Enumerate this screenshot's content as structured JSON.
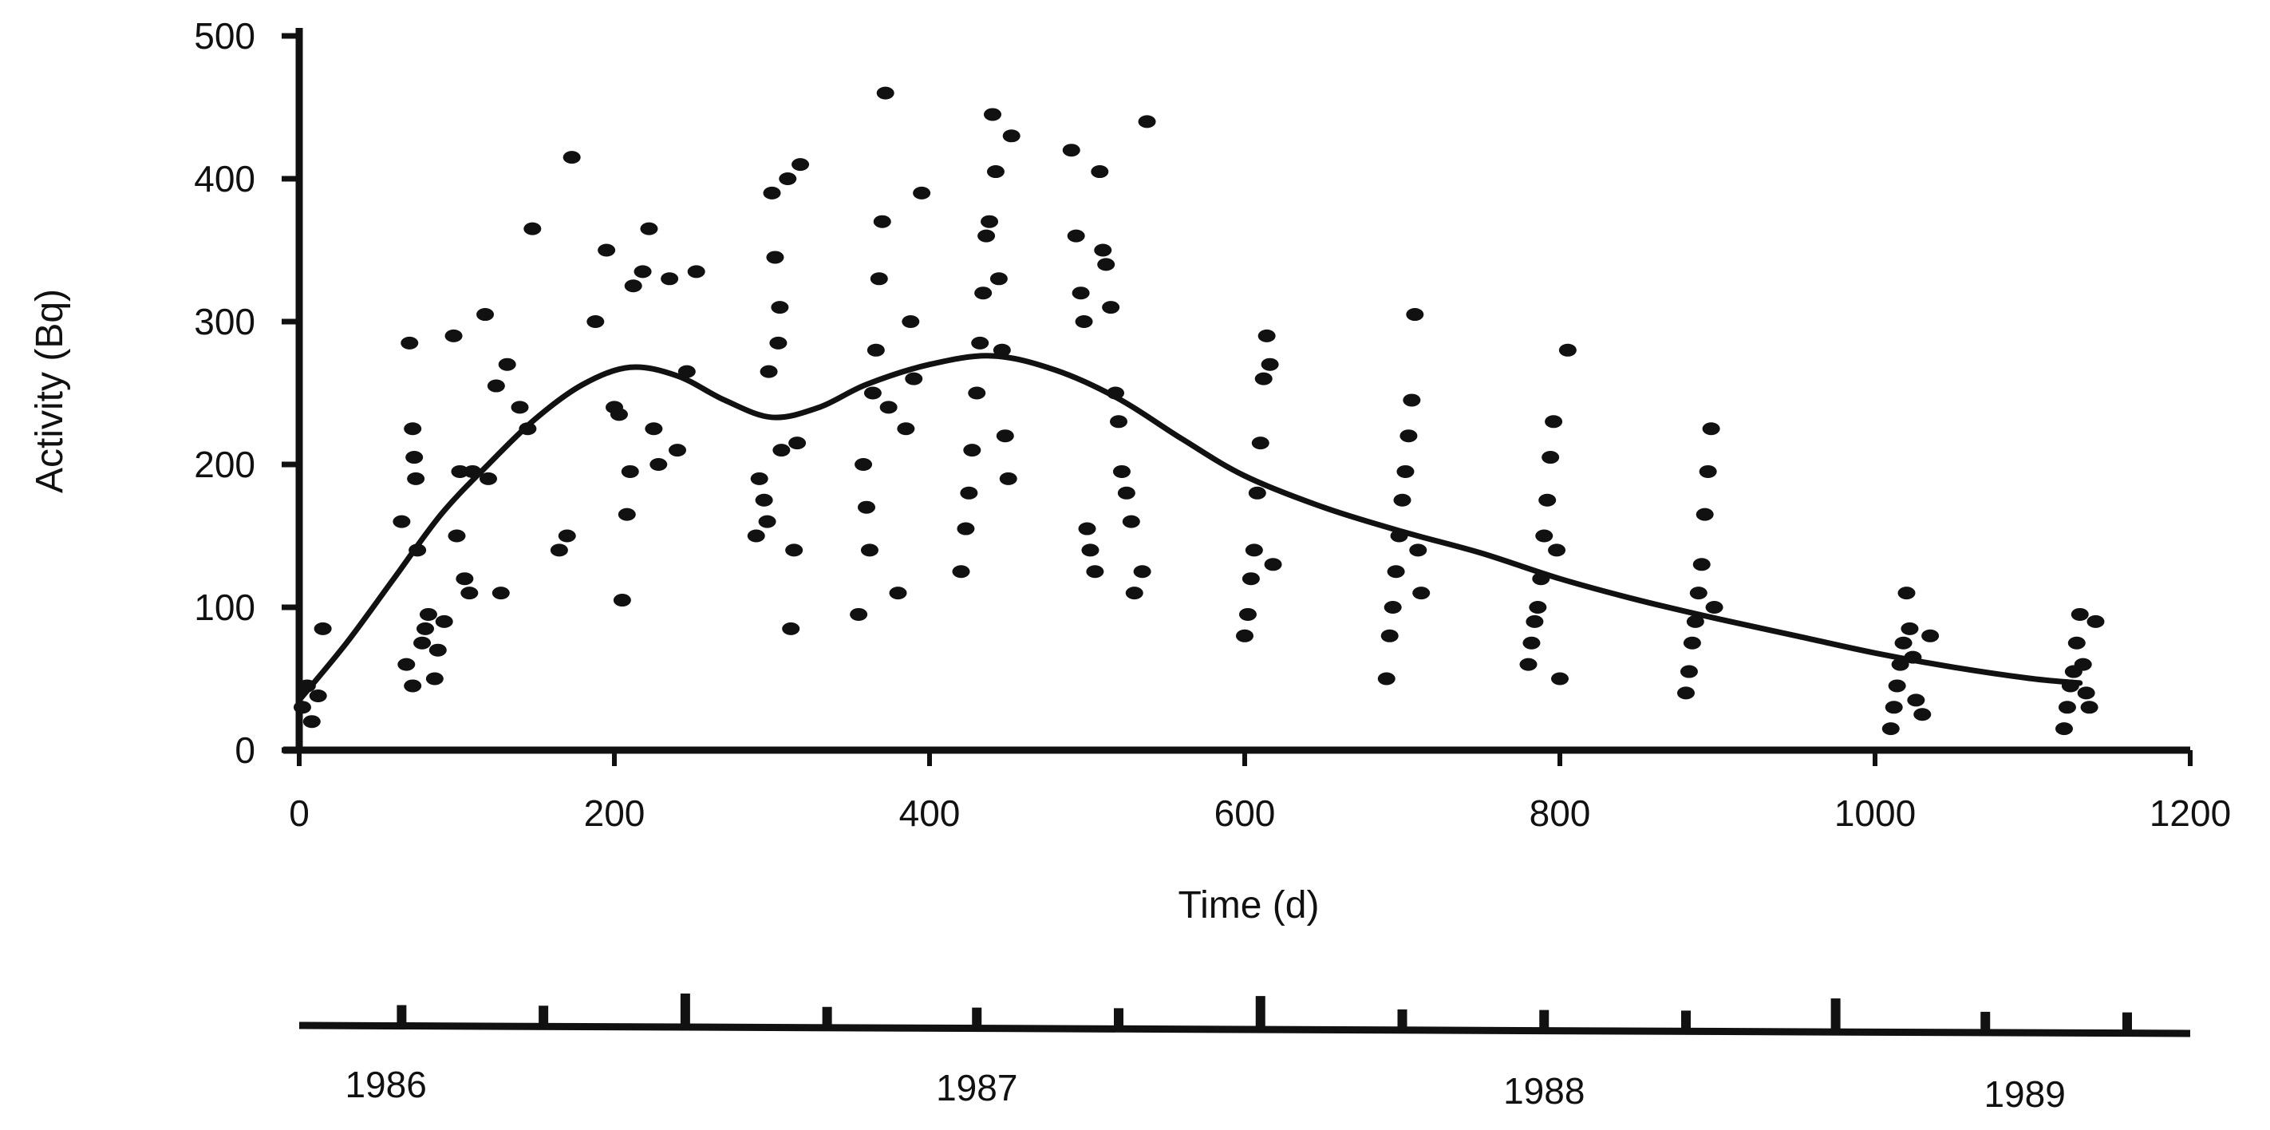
{
  "chart_data": {
    "type": "scatter",
    "title": "",
    "xlabel": "Time (d)",
    "ylabel": "Activity (Bq)",
    "xlim": [
      0,
      1200
    ],
    "ylim": [
      0,
      500
    ],
    "x_ticks": [
      0,
      200,
      400,
      600,
      800,
      1000,
      1200
    ],
    "y_ticks": [
      0,
      100,
      200,
      300,
      400,
      500
    ],
    "grid": false,
    "legend": "none",
    "colors": {
      "ink": "#111111",
      "background": "#ffffff"
    },
    "series": [
      {
        "kind": "scatter",
        "points": [
          [
            2,
            30
          ],
          [
            5,
            45
          ],
          [
            8,
            20
          ],
          [
            12,
            38
          ],
          [
            15,
            85
          ],
          [
            65,
            160
          ],
          [
            70,
            285
          ],
          [
            72,
            225
          ],
          [
            73,
            205
          ],
          [
            74,
            190
          ],
          [
            75,
            140
          ],
          [
            68,
            60
          ],
          [
            72,
            45
          ],
          [
            78,
            75
          ],
          [
            80,
            85
          ],
          [
            82,
            95
          ],
          [
            86,
            50
          ],
          [
            88,
            70
          ],
          [
            92,
            90
          ],
          [
            98,
            290
          ],
          [
            100,
            150
          ],
          [
            102,
            195
          ],
          [
            105,
            120
          ],
          [
            108,
            110
          ],
          [
            110,
            195
          ],
          [
            118,
            305
          ],
          [
            120,
            190
          ],
          [
            125,
            255
          ],
          [
            128,
            110
          ],
          [
            132,
            270
          ],
          [
            140,
            240
          ],
          [
            145,
            225
          ],
          [
            148,
            365
          ],
          [
            165,
            140
          ],
          [
            170,
            150
          ],
          [
            173,
            415
          ],
          [
            188,
            300
          ],
          [
            195,
            350
          ],
          [
            200,
            240
          ],
          [
            203,
            235
          ],
          [
            205,
            105
          ],
          [
            208,
            165
          ],
          [
            210,
            195
          ],
          [
            212,
            325
          ],
          [
            218,
            335
          ],
          [
            222,
            365
          ],
          [
            225,
            225
          ],
          [
            228,
            200
          ],
          [
            235,
            330
          ],
          [
            240,
            210
          ],
          [
            246,
            265
          ],
          [
            252,
            335
          ],
          [
            290,
            150
          ],
          [
            292,
            190
          ],
          [
            295,
            175
          ],
          [
            297,
            160
          ],
          [
            298,
            265
          ],
          [
            300,
            390
          ],
          [
            302,
            345
          ],
          [
            304,
            285
          ],
          [
            305,
            310
          ],
          [
            306,
            210
          ],
          [
            310,
            400
          ],
          [
            312,
            85
          ],
          [
            314,
            140
          ],
          [
            316,
            215
          ],
          [
            318,
            410
          ],
          [
            355,
            95
          ],
          [
            358,
            200
          ],
          [
            360,
            170
          ],
          [
            362,
            140
          ],
          [
            364,
            250
          ],
          [
            366,
            280
          ],
          [
            368,
            330
          ],
          [
            370,
            370
          ],
          [
            372,
            460
          ],
          [
            374,
            240
          ],
          [
            380,
            110
          ],
          [
            385,
            225
          ],
          [
            388,
            300
          ],
          [
            390,
            260
          ],
          [
            395,
            390
          ],
          [
            420,
            125
          ],
          [
            423,
            155
          ],
          [
            425,
            180
          ],
          [
            427,
            210
          ],
          [
            430,
            250
          ],
          [
            432,
            285
          ],
          [
            434,
            320
          ],
          [
            436,
            360
          ],
          [
            438,
            370
          ],
          [
            440,
            445
          ],
          [
            442,
            405
          ],
          [
            444,
            330
          ],
          [
            446,
            280
          ],
          [
            448,
            220
          ],
          [
            450,
            190
          ],
          [
            452,
            430
          ],
          [
            490,
            420
          ],
          [
            493,
            360
          ],
          [
            496,
            320
          ],
          [
            498,
            300
          ],
          [
            500,
            155
          ],
          [
            502,
            140
          ],
          [
            505,
            125
          ],
          [
            508,
            405
          ],
          [
            510,
            350
          ],
          [
            512,
            340
          ],
          [
            515,
            310
          ],
          [
            518,
            250
          ],
          [
            520,
            230
          ],
          [
            522,
            195
          ],
          [
            525,
            180
          ],
          [
            528,
            160
          ],
          [
            530,
            110
          ],
          [
            535,
            125
          ],
          [
            538,
            440
          ],
          [
            600,
            80
          ],
          [
            602,
            95
          ],
          [
            604,
            120
          ],
          [
            606,
            140
          ],
          [
            608,
            180
          ],
          [
            610,
            215
          ],
          [
            612,
            260
          ],
          [
            614,
            290
          ],
          [
            616,
            270
          ],
          [
            618,
            130
          ],
          [
            690,
            50
          ],
          [
            692,
            80
          ],
          [
            694,
            100
          ],
          [
            696,
            125
          ],
          [
            698,
            150
          ],
          [
            700,
            175
          ],
          [
            702,
            195
          ],
          [
            704,
            220
          ],
          [
            706,
            245
          ],
          [
            708,
            305
          ],
          [
            710,
            140
          ],
          [
            712,
            110
          ],
          [
            780,
            60
          ],
          [
            782,
            75
          ],
          [
            784,
            90
          ],
          [
            786,
            100
          ],
          [
            788,
            120
          ],
          [
            790,
            150
          ],
          [
            792,
            175
          ],
          [
            794,
            205
          ],
          [
            796,
            230
          ],
          [
            798,
            140
          ],
          [
            800,
            50
          ],
          [
            805,
            280
          ],
          [
            880,
            40
          ],
          [
            882,
            55
          ],
          [
            884,
            75
          ],
          [
            886,
            90
          ],
          [
            888,
            110
          ],
          [
            890,
            130
          ],
          [
            892,
            165
          ],
          [
            894,
            195
          ],
          [
            896,
            225
          ],
          [
            898,
            100
          ],
          [
            1010,
            15
          ],
          [
            1012,
            30
          ],
          [
            1014,
            45
          ],
          [
            1016,
            60
          ],
          [
            1018,
            75
          ],
          [
            1020,
            110
          ],
          [
            1022,
            85
          ],
          [
            1024,
            65
          ],
          [
            1026,
            35
          ],
          [
            1030,
            25
          ],
          [
            1035,
            80
          ],
          [
            1120,
            15
          ],
          [
            1122,
            30
          ],
          [
            1124,
            45
          ],
          [
            1126,
            55
          ],
          [
            1128,
            75
          ],
          [
            1130,
            95
          ],
          [
            1132,
            60
          ],
          [
            1134,
            40
          ],
          [
            1136,
            30
          ],
          [
            1140,
            90
          ]
        ]
      },
      {
        "kind": "line",
        "points": [
          [
            0,
            35
          ],
          [
            30,
            75
          ],
          [
            60,
            120
          ],
          [
            90,
            165
          ],
          [
            120,
            200
          ],
          [
            150,
            232
          ],
          [
            180,
            256
          ],
          [
            210,
            268
          ],
          [
            240,
            262
          ],
          [
            270,
            245
          ],
          [
            300,
            233
          ],
          [
            330,
            240
          ],
          [
            360,
            256
          ],
          [
            400,
            270
          ],
          [
            440,
            276
          ],
          [
            480,
            266
          ],
          [
            520,
            246
          ],
          [
            560,
            218
          ],
          [
            600,
            192
          ],
          [
            650,
            170
          ],
          [
            700,
            153
          ],
          [
            750,
            138
          ],
          [
            800,
            120
          ],
          [
            850,
            105
          ],
          [
            900,
            92
          ],
          [
            950,
            80
          ],
          [
            1000,
            68
          ],
          [
            1050,
            58
          ],
          [
            1100,
            50
          ],
          [
            1130,
            47
          ]
        ]
      }
    ],
    "secondary_axis": {
      "labels": [
        "1986",
        "1987",
        "1988",
        "1989"
      ],
      "label_positions": [
        55,
        430,
        790,
        1095
      ],
      "ticks": [
        {
          "x": 65,
          "major": false
        },
        {
          "x": 155,
          "major": false
        },
        {
          "x": 245,
          "major": true
        },
        {
          "x": 335,
          "major": false
        },
        {
          "x": 430,
          "major": false
        },
        {
          "x": 520,
          "major": false
        },
        {
          "x": 610,
          "major": true
        },
        {
          "x": 700,
          "major": false
        },
        {
          "x": 790,
          "major": false
        },
        {
          "x": 880,
          "major": false
        },
        {
          "x": 975,
          "major": true
        },
        {
          "x": 1070,
          "major": false
        },
        {
          "x": 1160,
          "major": false
        }
      ]
    }
  }
}
